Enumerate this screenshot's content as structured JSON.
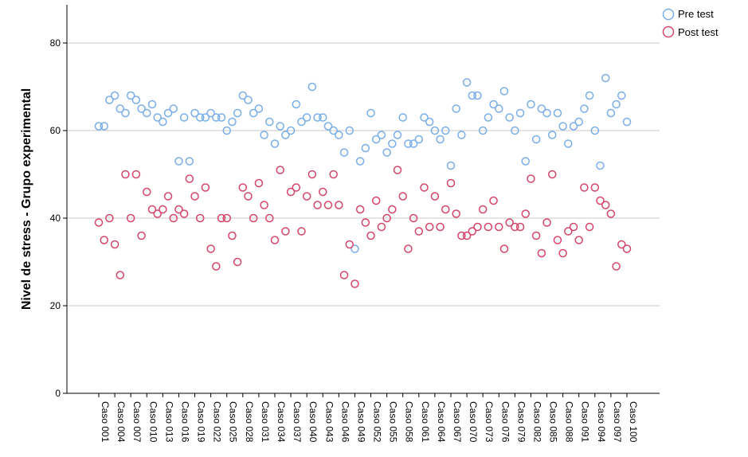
{
  "chart_data": {
    "type": "scatter",
    "title": "",
    "xlabel": "",
    "ylabel": "Nivel de stress - Grupo experimental",
    "ylim": [
      0,
      88
    ],
    "yticks": [
      0,
      20,
      40,
      60,
      80
    ],
    "grid": "horizontal",
    "legend_position": "top-right",
    "x_tick_labels": [
      "Caso 001",
      "Caso 004",
      "Caso 007",
      "Caso 010",
      "Caso 013",
      "Caso 016",
      "Caso 019",
      "Caso 022",
      "Caso 025",
      "Caso 028",
      "Caso 031",
      "Caso 034",
      "Caso 037",
      "Caso 040",
      "Caso 043",
      "Caso 046",
      "Caso 049",
      "Caso 052",
      "Caso 055",
      "Caso 058",
      "Caso 061",
      "Caso 064",
      "Caso 067",
      "Caso 070",
      "Caso 073",
      "Caso 076",
      "Caso 079",
      "Caso 082",
      "Caso 085",
      "Caso 088",
      "Caso 091",
      "Caso 094",
      "Caso 097",
      "Caso 100"
    ],
    "series": [
      {
        "name": "Pre test",
        "color": "#7aaee8",
        "values": [
          61,
          61,
          67,
          68,
          65,
          64,
          68,
          67,
          65,
          64,
          66,
          63,
          62,
          64,
          65,
          53,
          63,
          53,
          64,
          63,
          63,
          64,
          63,
          63,
          60,
          62,
          64,
          68,
          67,
          64,
          65,
          59,
          62,
          57,
          61,
          59,
          60,
          66,
          62,
          63,
          70,
          63,
          63,
          61,
          60,
          59,
          55,
          60,
          33,
          53,
          56,
          64,
          58,
          59,
          55,
          57,
          59,
          63,
          57,
          57,
          58,
          63,
          62,
          60,
          58,
          60,
          52,
          65,
          59,
          71,
          68,
          68,
          60,
          63,
          66,
          65,
          69,
          63,
          60,
          64,
          53,
          66,
          58,
          65,
          64,
          59,
          64,
          61,
          57,
          61,
          62,
          65,
          68,
          60,
          52,
          72,
          64,
          66,
          68,
          62
        ]
      },
      {
        "name": "Post test",
        "color": "#d6456a",
        "values": [
          39,
          35,
          40,
          34,
          27,
          50,
          40,
          50,
          36,
          46,
          42,
          41,
          42,
          45,
          40,
          42,
          41,
          49,
          45,
          40,
          47,
          33,
          29,
          40,
          40,
          36,
          30,
          47,
          45,
          40,
          48,
          43,
          40,
          35,
          51,
          37,
          46,
          47,
          37,
          45,
          50,
          43,
          46,
          43,
          50,
          43,
          27,
          34,
          25,
          42,
          39,
          36,
          44,
          38,
          40,
          42,
          51,
          45,
          33,
          40,
          37,
          47,
          38,
          45,
          38,
          42,
          48,
          41,
          36,
          36,
          37,
          38,
          42,
          38,
          44,
          38,
          33,
          39,
          38,
          38,
          41,
          49,
          36,
          32,
          39,
          50,
          35,
          32,
          37,
          38,
          35,
          47,
          38,
          47,
          44,
          43,
          41,
          29,
          34,
          33
        ]
      }
    ]
  }
}
